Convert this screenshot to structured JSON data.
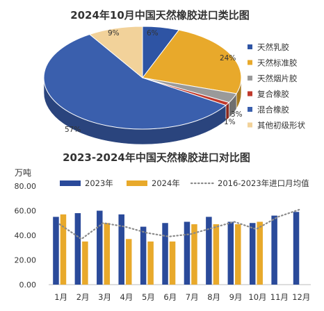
{
  "chart_data": [
    {
      "type": "pie",
      "title": "2024年10月中国天然橡胶进口类比图",
      "slices": [
        {
          "name": "天然乳胶",
          "value": 6,
          "label": "6%",
          "color": "#2e54a4"
        },
        {
          "name": "天然标准胶",
          "value": 24,
          "label": "24%",
          "color": "#e8a92b"
        },
        {
          "name": "天然烟片胶",
          "value": 3,
          "label": "3%",
          "color": "#9a9a9a"
        },
        {
          "name": "复合橡胶",
          "value": 1,
          "label": "1%",
          "color": "#c0392b"
        },
        {
          "name": "混合橡胶",
          "value": 57,
          "label": "57%",
          "color": "#3a5fad"
        },
        {
          "name": "其他初级形状",
          "value": 9,
          "label": "9%",
          "color": "#f2d29a"
        }
      ],
      "legend_position": "right"
    },
    {
      "type": "bar",
      "title": "2023-2024年中国天然橡胶进口对比图",
      "yunit": "万吨",
      "ylim": [
        0,
        80
      ],
      "yticks": [
        "0.00",
        "20.00",
        "40.00",
        "60.00",
        "80.00"
      ],
      "categories": [
        "1月",
        "2月",
        "3月",
        "4月",
        "5月",
        "6月",
        "7月",
        "8月",
        "9月",
        "10月",
        "11月",
        "12月"
      ],
      "series": [
        {
          "name": "2023年",
          "kind": "bar",
          "color": "#2a4a9a",
          "values": [
            55,
            58,
            60,
            57,
            47,
            50,
            51,
            55,
            51,
            50,
            56,
            59
          ]
        },
        {
          "name": "2024年",
          "kind": "bar",
          "color": "#e8a92b",
          "values": [
            57,
            35,
            50,
            37,
            35,
            35,
            49,
            49,
            49,
            51,
            null,
            null
          ]
        },
        {
          "name": "2016-2023年进口月均值",
          "kind": "line",
          "color": "#8a8a8a",
          "values": [
            49,
            37,
            50,
            47,
            42,
            39,
            41,
            46,
            51,
            45,
            55,
            61
          ]
        }
      ],
      "legend_position": "top",
      "grid": false
    }
  ]
}
